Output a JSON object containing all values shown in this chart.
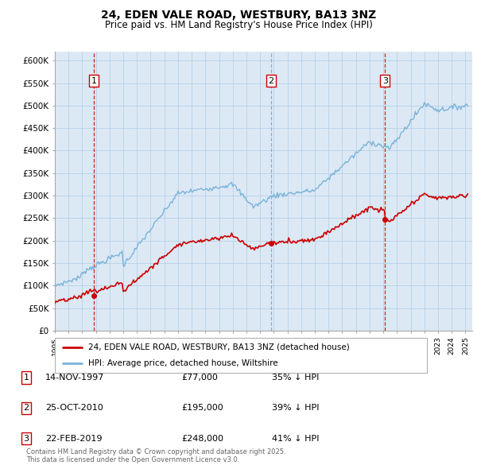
{
  "title": "24, EDEN VALE ROAD, WESTBURY, BA13 3NZ",
  "subtitle": "Price paid vs. HM Land Registry's House Price Index (HPI)",
  "background_color": "#dce9f5",
  "plot_bg_color": "#dce9f5",
  "hpi_color": "#7ab3d9",
  "price_color": "#cc0000",
  "transactions": [
    {
      "date": "14-NOV-1997",
      "price": 77000,
      "label": "1",
      "pct": "35% ↓ HPI",
      "year": 1997.87,
      "vcolor": "#cc0000"
    },
    {
      "date": "25-OCT-2010",
      "price": 195000,
      "label": "2",
      "pct": "39% ↓ HPI",
      "year": 2010.81,
      "vcolor": "#8899cc"
    },
    {
      "date": "22-FEB-2019",
      "price": 248000,
      "label": "3",
      "pct": "41% ↓ HPI",
      "year": 2019.13,
      "vcolor": "#cc0000"
    }
  ],
  "legend_label_price": "24, EDEN VALE ROAD, WESTBURY, BA13 3NZ (detached house)",
  "legend_label_hpi": "HPI: Average price, detached house, Wiltshire",
  "footer": "Contains HM Land Registry data © Crown copyright and database right 2025.\nThis data is licensed under the Open Government Licence v3.0.",
  "ylim": [
    0,
    620000
  ],
  "yticks": [
    0,
    50000,
    100000,
    150000,
    200000,
    250000,
    300000,
    350000,
    400000,
    450000,
    500000,
    550000,
    600000
  ],
  "xlim": [
    1995.0,
    2025.5
  ]
}
